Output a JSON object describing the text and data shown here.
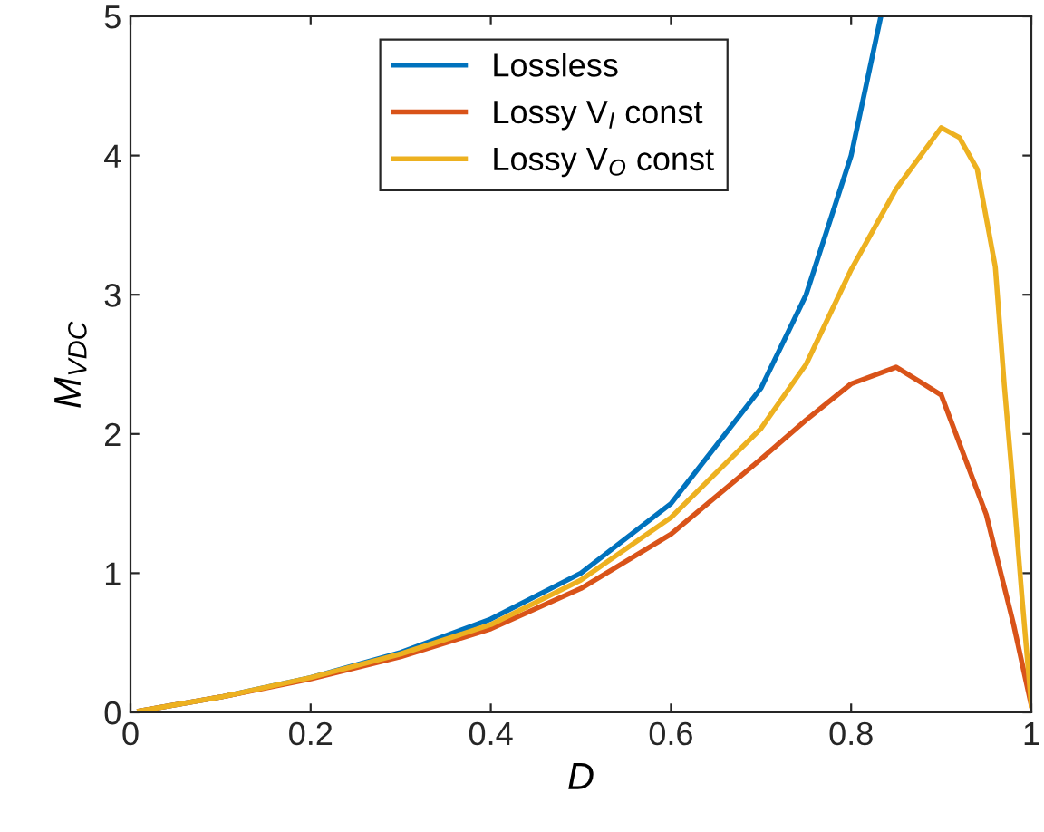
{
  "chart_data": {
    "type": "line",
    "xlabel": "D",
    "ylabel": "M$_{VDC}$",
    "xlim": [
      0,
      1
    ],
    "ylim": [
      0,
      5
    ],
    "xticks": [
      0,
      0.2,
      0.4,
      0.6,
      0.8,
      1
    ],
    "yticks": [
      0,
      1,
      2,
      3,
      4,
      5
    ],
    "grid": false,
    "legend": "top",
    "marker": "none",
    "line_style": "solid",
    "series": [
      {
        "name": "Lossless",
        "color": "#0072bd",
        "x": [
          0.01,
          0.1,
          0.2,
          0.3,
          0.4,
          0.5,
          0.6,
          0.7,
          0.75,
          0.8,
          0.833
        ],
        "values": [
          0.01,
          0.11,
          0.25,
          0.43,
          0.67,
          1.0,
          1.5,
          2.33,
          3.0,
          4.0,
          5.0
        ]
      },
      {
        "name": "Lossy V$_{I}$ const",
        "color": "#d95319",
        "x": [
          0.01,
          0.1,
          0.2,
          0.3,
          0.4,
          0.5,
          0.6,
          0.7,
          0.75,
          0.8,
          0.85,
          0.9,
          0.95,
          0.98,
          1
        ],
        "values": [
          0.01,
          0.11,
          0.24,
          0.4,
          0.6,
          0.89,
          1.28,
          1.82,
          2.1,
          2.36,
          2.48,
          2.28,
          1.42,
          0.64,
          0.05
        ]
      },
      {
        "name": "Lossy V$_{O}$ const",
        "color": "#edb120",
        "x": [
          0.01,
          0.1,
          0.2,
          0.3,
          0.4,
          0.5,
          0.6,
          0.7,
          0.75,
          0.8,
          0.85,
          0.9,
          0.92,
          0.94,
          0.96,
          0.97,
          0.98,
          0.99,
          1
        ],
        "values": [
          0.01,
          0.11,
          0.25,
          0.42,
          0.63,
          0.95,
          1.4,
          2.04,
          2.5,
          3.18,
          3.76,
          4.2,
          4.13,
          3.9,
          3.2,
          2.35,
          1.6,
          0.8,
          0.05
        ]
      }
    ]
  }
}
